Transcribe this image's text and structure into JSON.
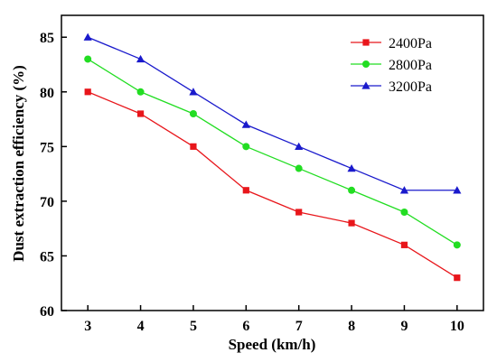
{
  "chart_data": {
    "type": "line",
    "xlabel": "Speed (km/h)",
    "ylabel": "Dust extraction efficiency (%)",
    "x": [
      3,
      4,
      5,
      6,
      7,
      8,
      9,
      10
    ],
    "xlim": [
      2.5,
      10.5
    ],
    "ylim": [
      60,
      87
    ],
    "yticks": [
      60,
      65,
      70,
      75,
      80,
      85
    ],
    "grid": false,
    "legend_position": "top-right",
    "series": [
      {
        "name": "2400Pa",
        "color": "#e8161b",
        "marker": "square",
        "values": [
          80,
          78,
          75,
          71,
          69,
          68,
          66,
          63
        ]
      },
      {
        "name": "2800Pa",
        "color": "#22dd22",
        "marker": "circle",
        "values": [
          83,
          80,
          78,
          75,
          73,
          71,
          69,
          66
        ]
      },
      {
        "name": "3200Pa",
        "color": "#1a1acc",
        "marker": "triangle",
        "values": [
          85,
          83,
          80,
          77,
          75,
          73,
          71,
          71
        ]
      }
    ]
  }
}
